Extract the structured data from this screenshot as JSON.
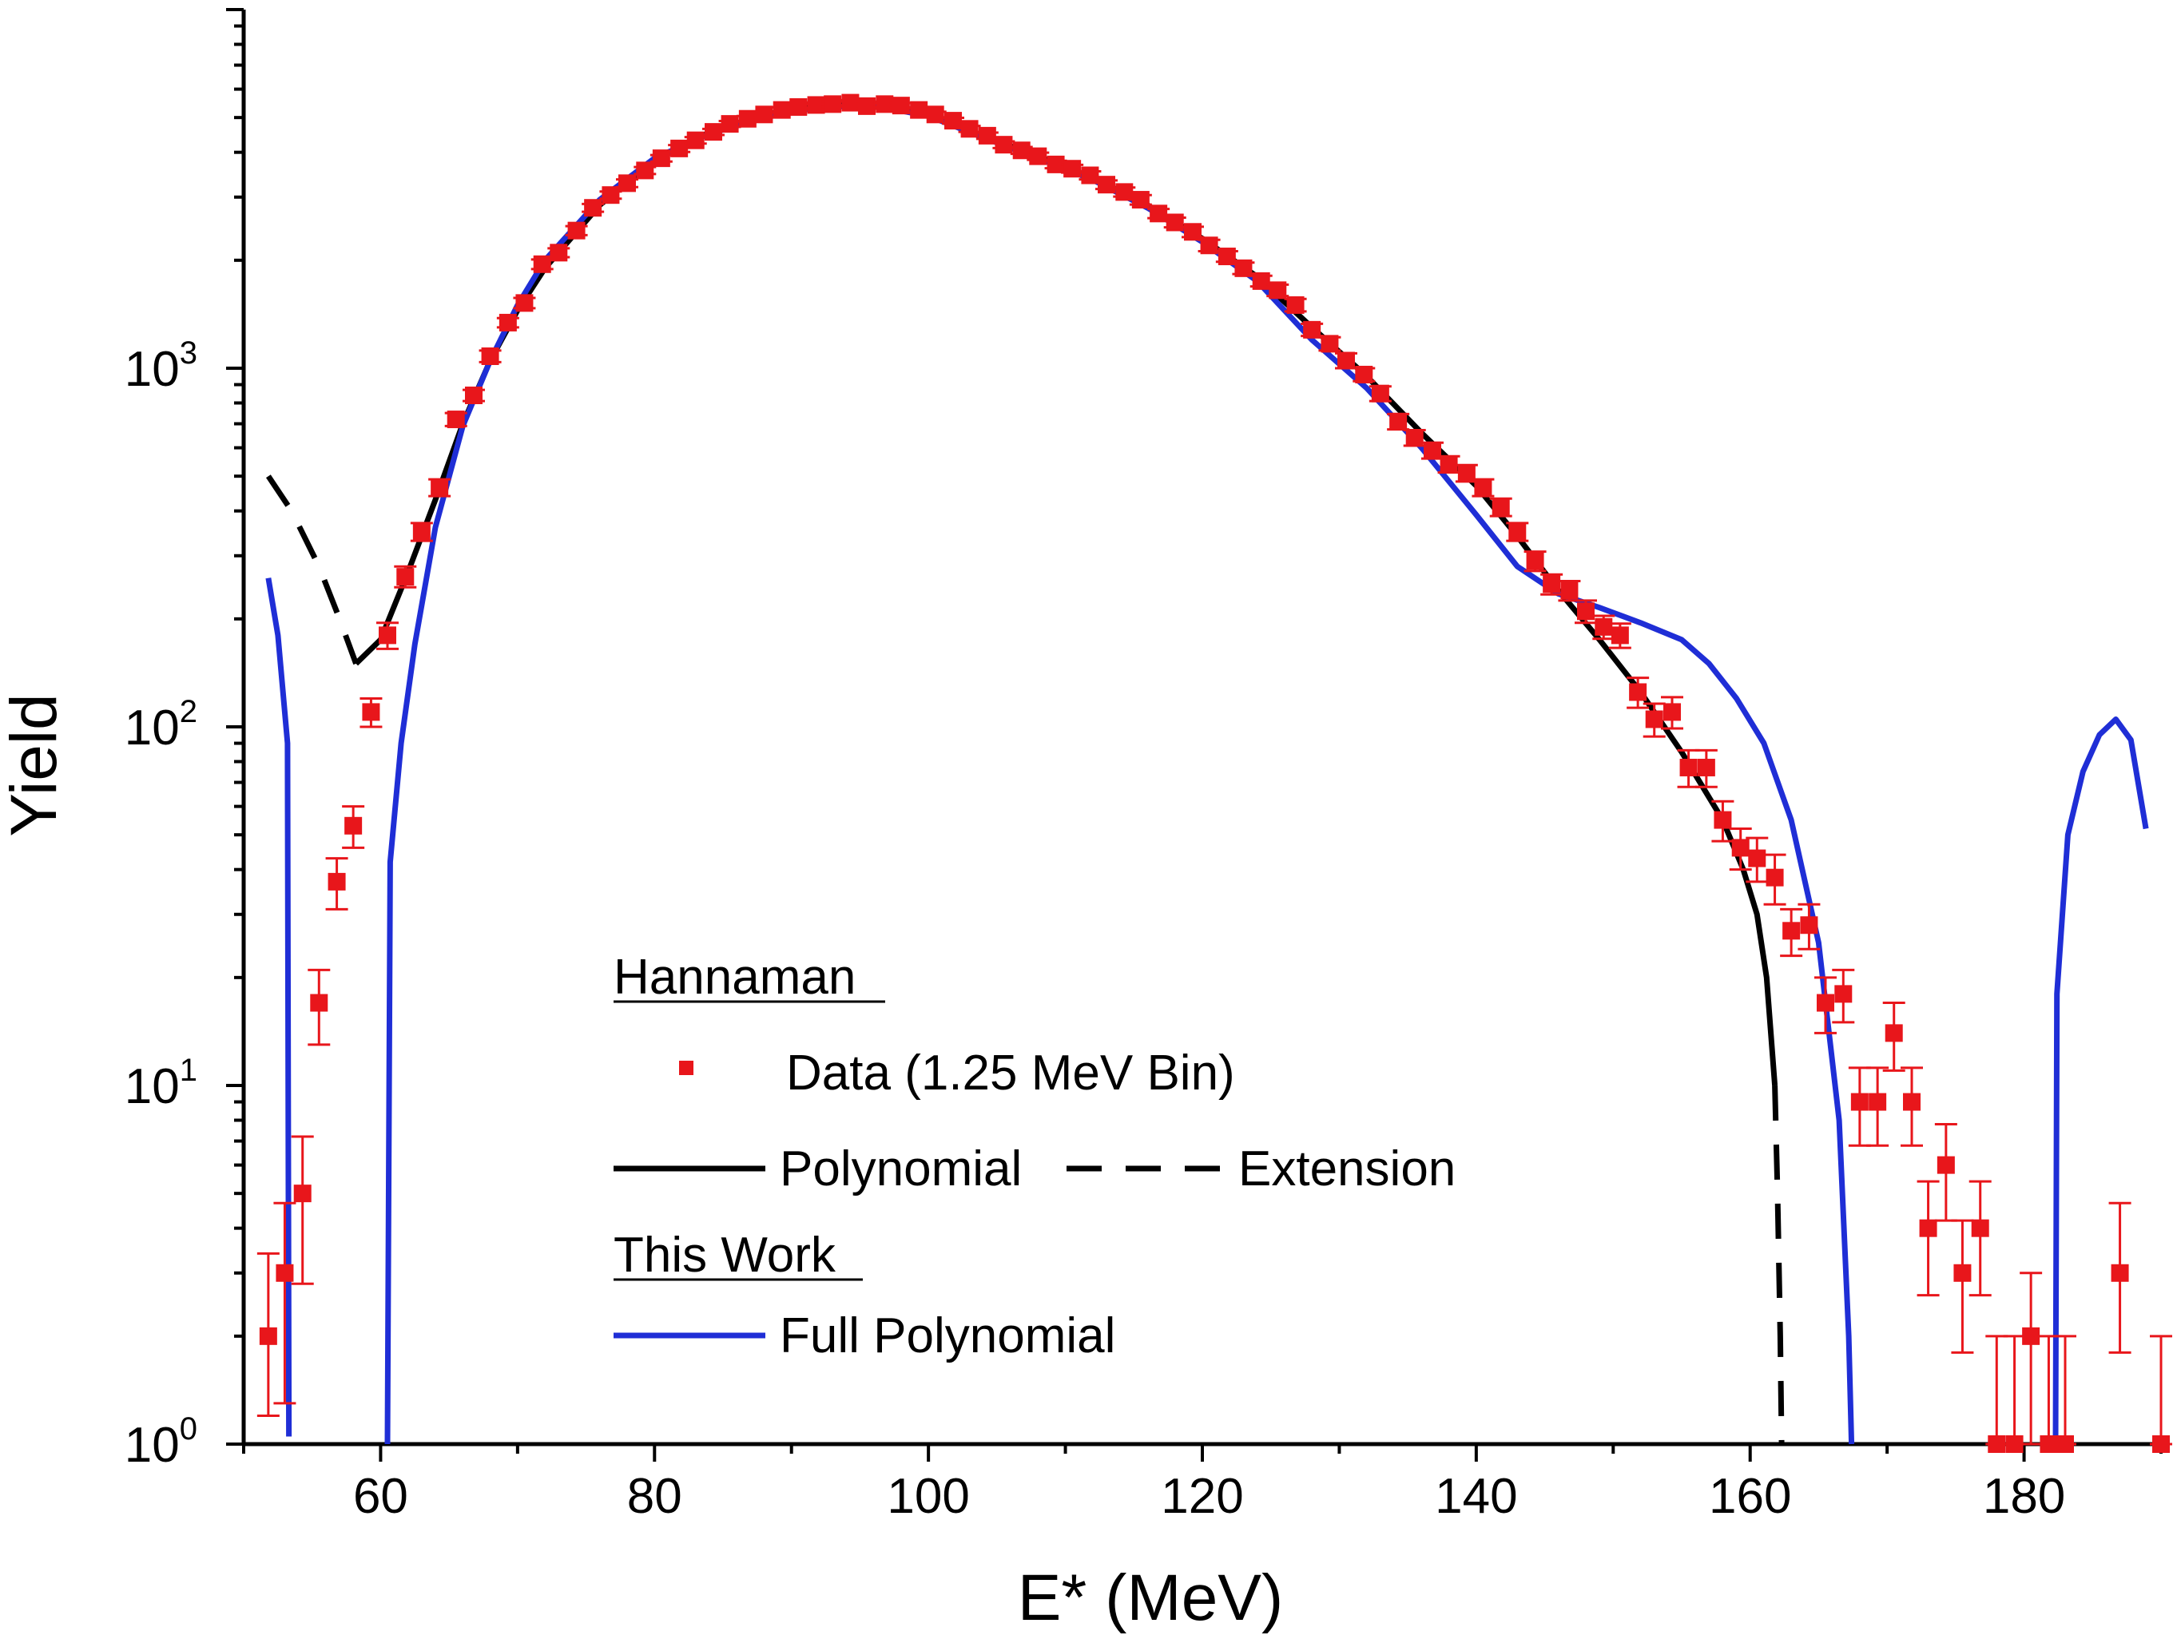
{
  "chart_data": {
    "type": "scatter",
    "xlabel": "E* (MeV)",
    "ylabel": "Yield",
    "x_scale": "linear",
    "y_scale": "log",
    "xlim": [
      50,
      190
    ],
    "ylim": [
      1,
      10000
    ],
    "x_ticks": [
      60,
      80,
      100,
      120,
      140,
      160,
      180
    ],
    "x_tick_labels": [
      "60",
      "80",
      "100",
      "120",
      "140",
      "160",
      "180"
    ],
    "y_ticks": [
      1,
      10,
      100,
      1000
    ],
    "y_tick_labels": [
      {
        "base": "10",
        "exp": "0"
      },
      {
        "base": "10",
        "exp": "1"
      },
      {
        "base": "10",
        "exp": "2"
      },
      {
        "base": "10",
        "exp": "3"
      }
    ],
    "legend": {
      "placement": "lower-center",
      "group1_header": "Hannaman",
      "data_label": "Data (1.25 MeV Bin)",
      "poly_label": "Polynomial",
      "ext_label": "Extension",
      "group2_header": "This Work",
      "full_label": "Full Polynomial"
    },
    "series": [
      {
        "name": "Data (1.25 MeV Bin)",
        "kind": "points_with_error_bars",
        "color": "#e8161b",
        "points": [
          [
            51.8,
            2.0,
            1.2,
            3.4
          ],
          [
            53.0,
            3.0,
            1.3,
            4.7
          ],
          [
            54.3,
            5.0,
            2.8,
            7.2
          ],
          [
            55.5,
            17,
            13,
            21
          ],
          [
            56.8,
            37,
            31,
            43
          ],
          [
            58.0,
            53,
            46,
            60
          ],
          [
            59.3,
            110,
            100,
            120
          ],
          [
            60.5,
            180,
            165,
            195
          ],
          [
            61.8,
            262,
            245,
            280
          ],
          [
            63.0,
            350,
            330,
            370
          ],
          [
            64.3,
            465,
            440,
            490
          ],
          [
            65.5,
            720,
            690,
            750
          ],
          [
            66.8,
            840,
            810,
            870
          ],
          [
            68.0,
            1080,
            1040,
            1120
          ],
          [
            69.3,
            1340,
            1300,
            1380
          ],
          [
            70.5,
            1520,
            1470,
            1570
          ],
          [
            71.8,
            1950,
            1890,
            2010
          ],
          [
            73.0,
            2100,
            2040,
            2160
          ],
          [
            74.3,
            2420,
            2350,
            2490
          ],
          [
            75.5,
            2800,
            2730,
            2870
          ],
          [
            76.8,
            3040,
            2970,
            3110
          ],
          [
            78.0,
            3280,
            3200,
            3360
          ],
          [
            79.3,
            3560,
            3480,
            3640
          ],
          [
            80.5,
            3850,
            3770,
            3930
          ],
          [
            81.8,
            4100,
            4010,
            4190
          ],
          [
            83.0,
            4320,
            4230,
            4410
          ],
          [
            84.3,
            4560,
            4470,
            4650
          ],
          [
            85.5,
            4800,
            4710,
            4890
          ],
          [
            86.8,
            4960,
            4870,
            5050
          ],
          [
            88.0,
            5100,
            5010,
            5190
          ],
          [
            89.3,
            5250,
            5160,
            5340
          ],
          [
            90.5,
            5350,
            5260,
            5440
          ],
          [
            91.8,
            5420,
            5330,
            5510
          ],
          [
            93.0,
            5450,
            5360,
            5540
          ],
          [
            94.3,
            5500,
            5410,
            5590
          ],
          [
            95.5,
            5380,
            5290,
            5470
          ],
          [
            96.8,
            5450,
            5360,
            5540
          ],
          [
            98.0,
            5400,
            5310,
            5490
          ],
          [
            99.3,
            5250,
            5160,
            5340
          ],
          [
            100.5,
            5100,
            5010,
            5190
          ],
          [
            101.8,
            4900,
            4810,
            4990
          ],
          [
            103.0,
            4650,
            4560,
            4740
          ],
          [
            104.3,
            4450,
            4360,
            4540
          ],
          [
            105.5,
            4200,
            4110,
            4290
          ],
          [
            106.8,
            4050,
            3960,
            4140
          ],
          [
            108.0,
            3900,
            3810,
            3990
          ],
          [
            109.3,
            3700,
            3610,
            3790
          ],
          [
            110.5,
            3600,
            3510,
            3690
          ],
          [
            111.8,
            3450,
            3360,
            3540
          ],
          [
            113.0,
            3250,
            3160,
            3340
          ],
          [
            114.3,
            3100,
            3010,
            3190
          ],
          [
            115.5,
            2950,
            2860,
            3040
          ],
          [
            116.8,
            2700,
            2620,
            2780
          ],
          [
            118.0,
            2550,
            2470,
            2630
          ],
          [
            119.3,
            2400,
            2320,
            2480
          ],
          [
            120.5,
            2200,
            2120,
            2280
          ],
          [
            121.8,
            2050,
            1980,
            2120
          ],
          [
            123.0,
            1900,
            1830,
            1970
          ],
          [
            124.3,
            1750,
            1690,
            1810
          ],
          [
            125.5,
            1650,
            1590,
            1710
          ],
          [
            126.8,
            1500,
            1440,
            1560
          ],
          [
            128.0,
            1280,
            1230,
            1330
          ],
          [
            129.3,
            1170,
            1120,
            1220
          ],
          [
            130.5,
            1050,
            1000,
            1100
          ],
          [
            131.8,
            960,
            920,
            1000
          ],
          [
            133.0,
            850,
            810,
            890
          ],
          [
            134.3,
            710,
            675,
            745
          ],
          [
            135.5,
            640,
            608,
            672
          ],
          [
            136.8,
            590,
            560,
            620
          ],
          [
            138.0,
            540,
            512,
            568
          ],
          [
            139.3,
            510,
            483,
            537
          ],
          [
            140.5,
            465,
            440,
            490
          ],
          [
            141.8,
            410,
            387,
            433
          ],
          [
            143.0,
            350,
            330,
            370
          ],
          [
            144.3,
            290,
            272,
            308
          ],
          [
            145.5,
            250,
            234,
            266
          ],
          [
            146.8,
            240,
            225,
            255
          ],
          [
            148.0,
            210,
            195,
            225
          ],
          [
            149.3,
            190,
            176,
            204
          ],
          [
            150.5,
            180,
            166,
            194
          ],
          [
            151.8,
            125,
            113,
            137
          ],
          [
            153.0,
            105,
            94,
            116
          ],
          [
            154.3,
            110,
            99,
            121
          ],
          [
            155.5,
            77,
            68,
            86
          ],
          [
            156.8,
            77,
            68,
            86
          ],
          [
            158.0,
            55,
            48,
            62
          ],
          [
            159.3,
            46,
            40,
            52
          ],
          [
            160.5,
            43,
            37,
            49
          ],
          [
            161.8,
            38,
            32,
            44
          ],
          [
            163.0,
            27,
            23,
            31
          ],
          [
            164.3,
            28,
            24,
            32
          ],
          [
            165.5,
            17,
            14,
            20
          ],
          [
            166.8,
            18,
            15,
            21
          ],
          [
            168.0,
            9,
            6.8,
            11.2
          ],
          [
            169.3,
            9,
            6.8,
            11.2
          ],
          [
            170.5,
            14,
            11,
            17
          ],
          [
            171.8,
            9,
            6.8,
            11.2
          ],
          [
            173.0,
            4,
            2.6,
            5.4
          ],
          [
            174.3,
            6,
            4.2,
            7.8
          ],
          [
            175.5,
            3,
            1.8,
            4.2
          ],
          [
            176.8,
            4,
            2.6,
            5.4
          ],
          [
            178.0,
            1,
            1,
            2
          ],
          [
            179.3,
            1,
            1,
            2
          ],
          [
            180.5,
            2,
            1,
            3
          ],
          [
            181.8,
            1,
            1,
            2
          ],
          [
            183.0,
            1,
            1,
            2
          ],
          [
            187.0,
            3,
            1.8,
            4.7
          ],
          [
            190.0,
            1,
            1,
            2
          ]
        ]
      },
      {
        "name": "Polynomial",
        "kind": "line",
        "style": "solid",
        "color": "#000000",
        "points": [
          [
            58.2,
            150
          ],
          [
            60,
            175
          ],
          [
            62,
            270
          ],
          [
            64,
            430
          ],
          [
            66,
            700
          ],
          [
            68,
            1050
          ],
          [
            70,
            1450
          ],
          [
            72,
            1900
          ],
          [
            76,
            2850
          ],
          [
            80,
            3800
          ],
          [
            84,
            4550
          ],
          [
            88,
            5100
          ],
          [
            92,
            5400
          ],
          [
            96,
            5450
          ],
          [
            100,
            5100
          ],
          [
            104,
            4450
          ],
          [
            108,
            3900
          ],
          [
            112,
            3400
          ],
          [
            116,
            2850
          ],
          [
            120,
            2300
          ],
          [
            124,
            1800
          ],
          [
            128,
            1300
          ],
          [
            132,
            950
          ],
          [
            136,
            660
          ],
          [
            140,
            470
          ],
          [
            143,
            340
          ],
          [
            146,
            240
          ],
          [
            149,
            175
          ],
          [
            152,
            125
          ],
          [
            155,
            85
          ],
          [
            158,
            55
          ],
          [
            159.5,
            40
          ],
          [
            160.5,
            30
          ],
          [
            161.2,
            20
          ],
          [
            161.8,
            10
          ]
        ]
      },
      {
        "name": "Extension",
        "kind": "line",
        "style": "dashed",
        "color": "#000000",
        "segments": [
          [
            [
              51.8,
              500
            ],
            [
              53.5,
              400
            ],
            [
              55.5,
              280
            ],
            [
              57.0,
              200
            ],
            [
              58.2,
              150
            ]
          ],
          [
            [
              161.8,
              10
            ],
            [
              162.0,
              5
            ],
            [
              162.2,
              2
            ],
            [
              162.3,
              1
            ]
          ]
        ]
      },
      {
        "name": "Full Polynomial",
        "kind": "line",
        "style": "solid",
        "color": "#1f2ed6",
        "segments": [
          [
            [
              51.8,
              260
            ],
            [
              52.5,
              180
            ],
            [
              53.2,
              90
            ],
            [
              53.3,
              1.05
            ]
          ],
          [
            [
              60.5,
              1.0
            ],
            [
              60.7,
              42
            ],
            [
              61.5,
              90
            ],
            [
              62.5,
              170
            ],
            [
              64,
              360
            ],
            [
              66,
              690
            ],
            [
              68,
              1050
            ],
            [
              70,
              1500
            ],
            [
              72,
              2000
            ],
            [
              76,
              2950
            ],
            [
              80,
              3850
            ],
            [
              84,
              4500
            ],
            [
              88,
              5000
            ],
            [
              92,
              5350
            ],
            [
              96,
              5400
            ],
            [
              100,
              5050
            ],
            [
              104,
              4400
            ],
            [
              108,
              3850
            ],
            [
              112,
              3350
            ],
            [
              116,
              2800
            ],
            [
              120,
              2250
            ],
            [
              124,
              1750
            ],
            [
              128,
              1200
            ],
            [
              132,
              880
            ],
            [
              136,
              600
            ],
            [
              140,
              390
            ],
            [
              143,
              280
            ],
            [
              146,
              235
            ],
            [
              149,
              215
            ],
            [
              152,
              195
            ],
            [
              155,
              175
            ],
            [
              157,
              150
            ],
            [
              159,
              120
            ],
            [
              161,
              90
            ],
            [
              163,
              55
            ],
            [
              165,
              25
            ],
            [
              166.5,
              8
            ],
            [
              167.2,
              2
            ],
            [
              167.4,
              1
            ]
          ],
          [
            [
              182.3,
              1
            ],
            [
              182.4,
              18
            ],
            [
              183.2,
              50
            ],
            [
              184.3,
              75
            ],
            [
              185.5,
              95
            ],
            [
              186.7,
              105
            ],
            [
              187.8,
              92
            ],
            [
              188.9,
              52
            ]
          ]
        ]
      }
    ]
  }
}
